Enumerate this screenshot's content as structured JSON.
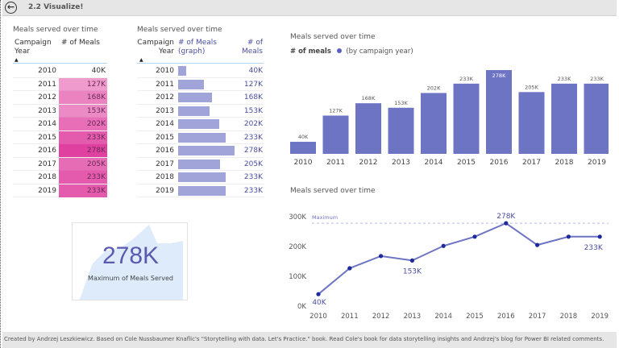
{
  "header": {
    "title": "2.2 Visualize!",
    "back_icon": "back-arrow-icon"
  },
  "footer": {
    "text": "Created by Andrzej Leszkiewicz. Based on Cole Nussbaumer Knaflic's \"Storytelling with data. Let's Practice.\" book. Read Cole's book for data storytelling insights and Andrzej's blog for Power BI related comments."
  },
  "table1": {
    "title": "Meals served over time",
    "col_year": "Campaign Year",
    "col_year_l1": "Campaign",
    "col_year_l2": "Year",
    "col_meals": "# of Meals",
    "rows": [
      {
        "year": "2010",
        "value": "40K"
      },
      {
        "year": "2011",
        "value": "127K"
      },
      {
        "year": "2012",
        "value": "168K"
      },
      {
        "year": "2013",
        "value": "153K"
      },
      {
        "year": "2014",
        "value": "202K"
      },
      {
        "year": "2015",
        "value": "233K"
      },
      {
        "year": "2016",
        "value": "278K"
      },
      {
        "year": "2017",
        "value": "205K"
      },
      {
        "year": "2018",
        "value": "233K"
      },
      {
        "year": "2019",
        "value": "233K"
      }
    ],
    "heat_color": "#e040a0"
  },
  "table2": {
    "title": "Meals served over time",
    "col_year_l1": "Campaign",
    "col_year_l2": "Year",
    "col_graph_l1": "# of Meals",
    "col_graph_l2": "(graph)",
    "col_meals_l1": "# of",
    "col_meals_l2": "Meals",
    "bar_color": "#a0a4d8",
    "value_color": "#4a4ea0"
  },
  "card": {
    "value": "278K",
    "label": "Maximum of Meals Served"
  },
  "chart_data": [
    {
      "type": "bar",
      "title": "Meals served over time",
      "legend_label": "# of meals",
      "legend_sub": "(by campaign year)",
      "categories": [
        "2010",
        "2011",
        "2012",
        "2013",
        "2014",
        "2015",
        "2016",
        "2017",
        "2018",
        "2019"
      ],
      "values": [
        40,
        127,
        168,
        153,
        202,
        233,
        278,
        205,
        233,
        233
      ],
      "labels": [
        "40K",
        "127K",
        "168K",
        "153K",
        "202K",
        "233K",
        "278K",
        "205K",
        "233K",
        "233K"
      ],
      "unit": "K",
      "color": "#6e74c4"
    },
    {
      "type": "line",
      "title": "Meals served over time",
      "categories": [
        "2010",
        "2011",
        "2012",
        "2013",
        "2014",
        "2015",
        "2016",
        "2017",
        "2018",
        "2019"
      ],
      "values": [
        40,
        127,
        168,
        153,
        202,
        233,
        278,
        205,
        233,
        233
      ],
      "ylim": [
        0,
        300
      ],
      "yticks": [
        "0K",
        "100K",
        "200K",
        "300K"
      ],
      "ytick_values": [
        0,
        100,
        200,
        300
      ],
      "reference_line": {
        "label": "Maximum",
        "value": 278
      },
      "point_labels": [
        {
          "index": 0,
          "text": "40K"
        },
        {
          "index": 3,
          "text": "153K"
        },
        {
          "index": 6,
          "text": "278K"
        },
        {
          "index": 9,
          "text": "233K"
        }
      ],
      "color": "#6e74c4",
      "point_color": "#1e2a9a"
    }
  ]
}
